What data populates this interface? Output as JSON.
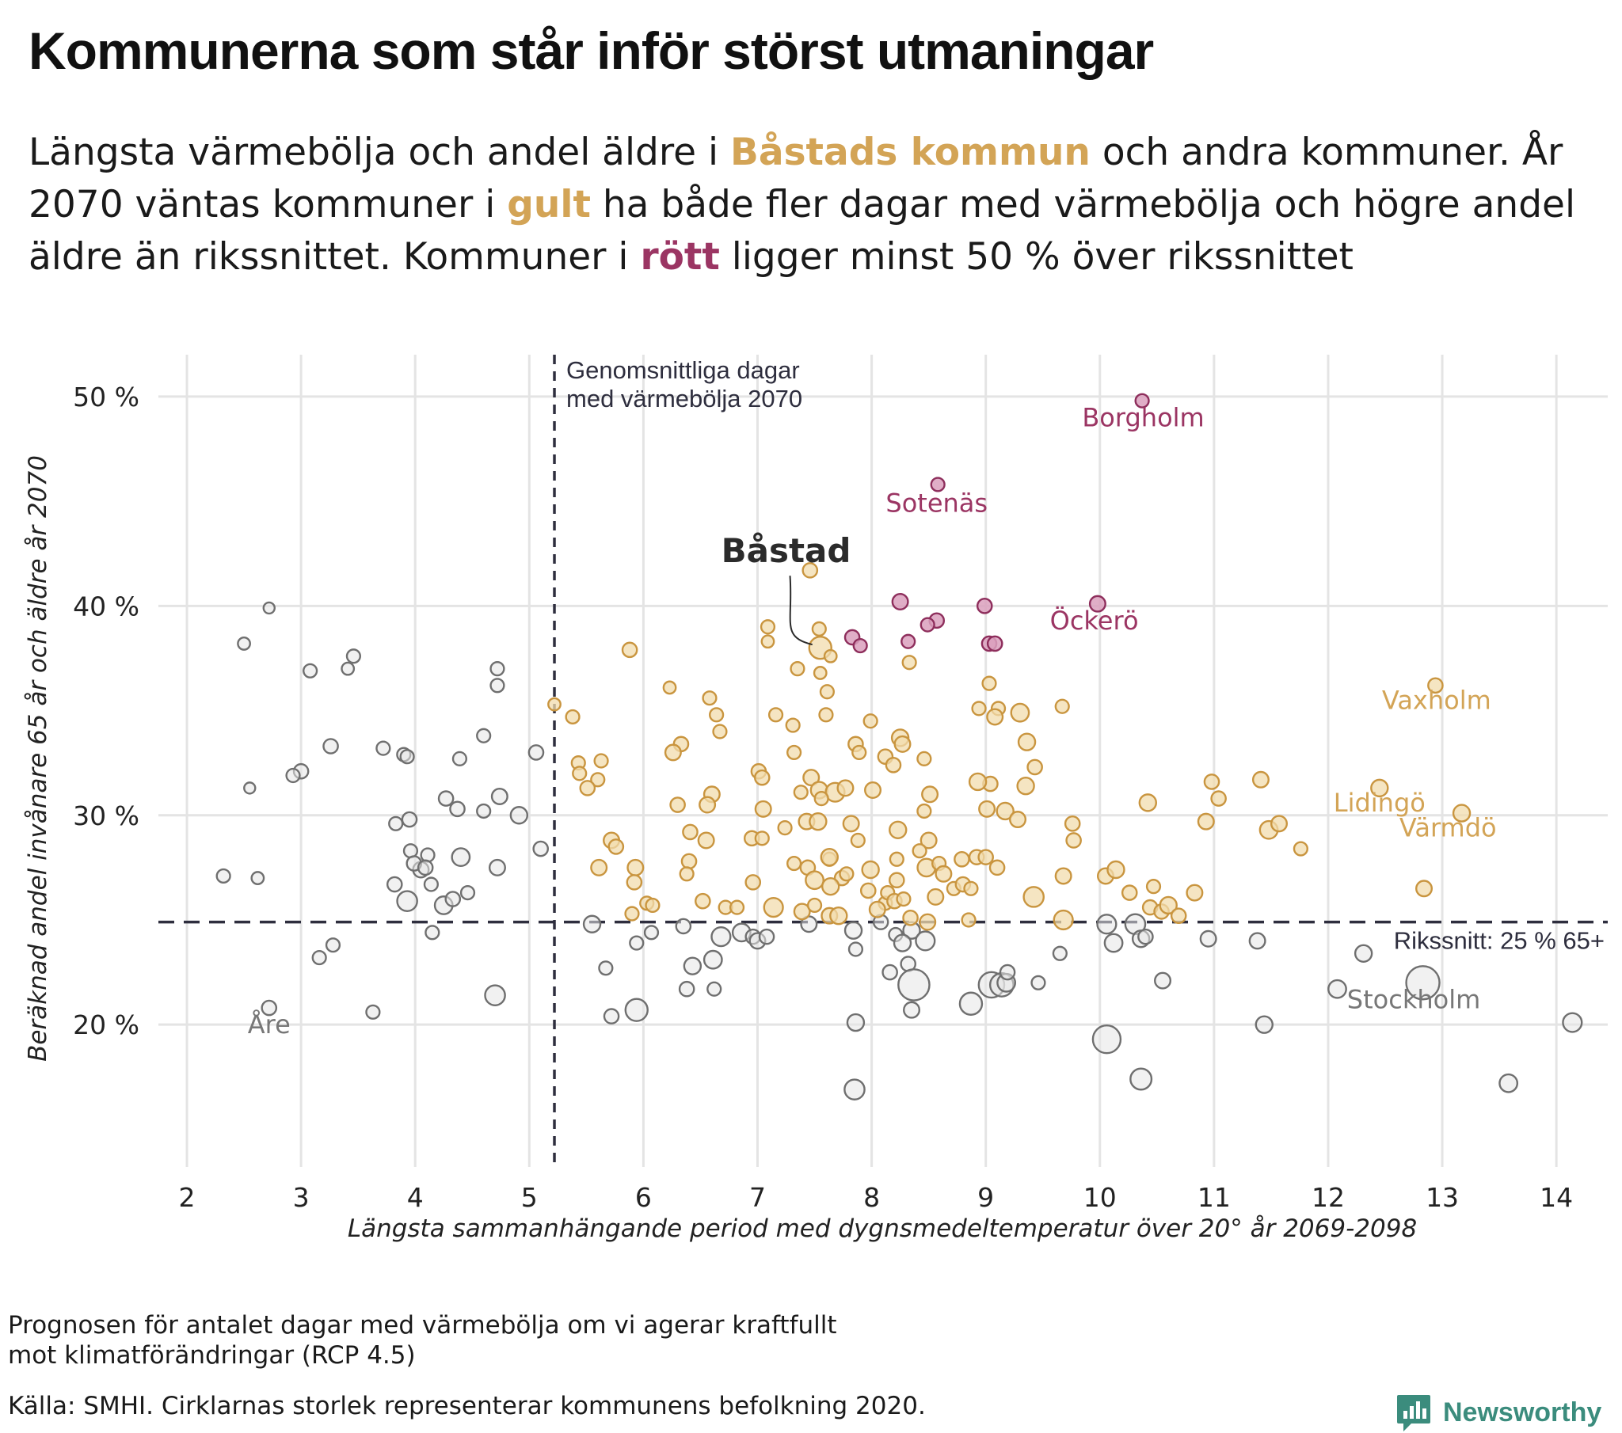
{
  "title": "Kommunerna som står inför störst utmaningar",
  "subtitle": {
    "p1": "Längsta värmebölja och andel äldre i ",
    "h1": "Båstads kommun",
    "p2": " och andra kommuner. År 2070 väntas kommuner i ",
    "h2": "gult",
    "p3": " ha både fler dagar med värmebölja och högre andel äldre än rikssnittet. Kommuner i ",
    "h3": "rött",
    "p4": " ligger minst 50 % över rikssnittet"
  },
  "footnotes": {
    "line1": "Prognosen för antalet dagar med värmebölja om vi agerar kraftfullt",
    "line2": "mot klimatförändringar (RCP 4.5)",
    "source": "Källa: SMHI. Cirklarnas storlek representerar kommunens befolkning 2020."
  },
  "logo": {
    "text": "Newsworthy",
    "icon": "bar-chart-logo-icon",
    "color": "#3b8c7d"
  },
  "chart_data": {
    "type": "scatter",
    "xlabel": "Längsta sammanhängande period med dygnsmedeltemperatur över 20° år 2069-2098",
    "ylabel": "Beräknad andel invånare 65 år och äldre år 2070",
    "xlim": [
      1.75,
      14.45
    ],
    "ylim": [
      13.2,
      52.0
    ],
    "x_ticks": [
      2,
      3,
      4,
      5,
      6,
      7,
      8,
      9,
      10,
      11,
      12,
      13,
      14
    ],
    "y_ticks": [
      {
        "value": 20,
        "label": "20 %"
      },
      {
        "value": 30,
        "label": "30 %"
      },
      {
        "value": 40,
        "label": "40 %"
      },
      {
        "value": 50,
        "label": "50 %"
      }
    ],
    "grid": true,
    "colors": {
      "gray": "#c8c8c8",
      "gold": "#d3a456",
      "red": "#9b3563",
      "gray_label": "#777777"
    },
    "reference_lines": {
      "vertical": {
        "x": 5.22,
        "label_line1": "Genomsnittliga dagar",
        "label_line2": "med värmebölja 2070"
      },
      "horizontal": {
        "y": 24.9,
        "label": "Rikssnitt: 25 % 65+"
      }
    },
    "labels": [
      {
        "text": "Borgholm",
        "x": 10.38,
        "y": 49.0,
        "group": "red"
      },
      {
        "text": "Sotenäs",
        "x": 8.57,
        "y": 44.9,
        "group": "red"
      },
      {
        "text": "Öckerö",
        "x": 9.95,
        "y": 39.3,
        "group": "red"
      },
      {
        "text": "Båstad",
        "x": 7.25,
        "y": 42.5,
        "group": "highlight"
      },
      {
        "text": "Vaxholm",
        "x": 12.95,
        "y": 35.5,
        "group": "gold"
      },
      {
        "text": "Lidingö",
        "x": 12.45,
        "y": 30.6,
        "group": "gold"
      },
      {
        "text": "Värmdö",
        "x": 13.05,
        "y": 29.4,
        "group": "gold"
      },
      {
        "text": "Stockholm",
        "x": 12.75,
        "y": 21.2,
        "group": "gray"
      },
      {
        "text": "Åre",
        "x": 2.72,
        "y": 20.0,
        "group": "gray"
      }
    ],
    "points_format": "[x, y, size]; size 1 = smallest circle",
    "red_points": [
      [
        10.37,
        49.8,
        1.2
      ],
      [
        8.58,
        45.8,
        1.2
      ],
      [
        9.98,
        40.1,
        1.4
      ],
      [
        8.25,
        40.2,
        1.4
      ],
      [
        8.99,
        40.0,
        1.3
      ],
      [
        8.57,
        39.3,
        1.3
      ],
      [
        8.49,
        39.1,
        1.2
      ],
      [
        7.83,
        38.5,
        1.3
      ],
      [
        7.9,
        38.1,
        1.2
      ],
      [
        8.32,
        38.3,
        1.2
      ],
      [
        9.03,
        38.2,
        1.3
      ],
      [
        9.08,
        38.2,
        1.3
      ]
    ],
    "gold_points": [
      [
        7.46,
        41.7,
        1.3
      ],
      [
        7.55,
        38.0,
        2.0
      ],
      [
        7.54,
        38.9,
        1.2
      ],
      [
        7.09,
        39.0,
        1.2
      ],
      [
        7.09,
        38.3,
        1.1
      ],
      [
        7.64,
        37.6,
        1.1
      ],
      [
        7.35,
        37.0,
        1.2
      ],
      [
        5.88,
        37.9,
        1.3
      ],
      [
        8.33,
        37.3,
        1.2
      ],
      [
        9.03,
        36.3,
        1.2
      ],
      [
        7.55,
        36.8,
        1.1
      ],
      [
        6.23,
        36.1,
        1.1
      ],
      [
        7.61,
        35.9,
        1.2
      ],
      [
        6.58,
        35.6,
        1.2
      ],
      [
        9.67,
        35.2,
        1.2
      ],
      [
        5.22,
        35.3,
        1.1
      ],
      [
        9.11,
        35.1,
        1.2
      ],
      [
        8.94,
        35.1,
        1.2
      ],
      [
        12.94,
        36.2,
        1.3
      ],
      [
        9.3,
        34.9,
        1.6
      ],
      [
        6.64,
        34.8,
        1.2
      ],
      [
        7.6,
        34.8,
        1.2
      ],
      [
        5.38,
        34.7,
        1.2
      ],
      [
        9.08,
        34.7,
        1.4
      ],
      [
        7.16,
        34.8,
        1.2
      ],
      [
        7.31,
        34.3,
        1.2
      ],
      [
        6.67,
        34.0,
        1.2
      ],
      [
        7.99,
        34.5,
        1.2
      ],
      [
        8.25,
        33.7,
        1.5
      ],
      [
        8.27,
        33.4,
        1.4
      ],
      [
        7.86,
        33.4,
        1.3
      ],
      [
        9.36,
        33.5,
        1.5
      ],
      [
        7.32,
        33.0,
        1.2
      ],
      [
        6.33,
        33.4,
        1.3
      ],
      [
        6.26,
        33.0,
        1.4
      ],
      [
        8.46,
        32.7,
        1.2
      ],
      [
        5.43,
        32.5,
        1.2
      ],
      [
        5.63,
        32.6,
        1.2
      ],
      [
        7.01,
        32.1,
        1.3
      ],
      [
        8.12,
        32.8,
        1.3
      ],
      [
        7.89,
        33.0,
        1.2
      ],
      [
        8.19,
        32.4,
        1.3
      ],
      [
        5.44,
        32.0,
        1.2
      ],
      [
        5.6,
        31.7,
        1.2
      ],
      [
        5.51,
        31.3,
        1.3
      ],
      [
        6.6,
        31.0,
        1.4
      ],
      [
        6.56,
        30.5,
        1.4
      ],
      [
        7.47,
        31.8,
        1.4
      ],
      [
        7.54,
        31.2,
        1.5
      ],
      [
        7.38,
        31.1,
        1.2
      ],
      [
        7.68,
        31.1,
        1.7
      ],
      [
        7.04,
        31.8,
        1.3
      ],
      [
        7.77,
        31.3,
        1.4
      ],
      [
        8.01,
        31.2,
        1.4
      ],
      [
        9.04,
        31.5,
        1.3
      ],
      [
        8.93,
        31.6,
        1.5
      ],
      [
        9.43,
        32.3,
        1.3
      ],
      [
        9.35,
        31.4,
        1.5
      ],
      [
        8.51,
        31.0,
        1.4
      ],
      [
        7.56,
        30.8,
        1.2
      ],
      [
        6.3,
        30.5,
        1.3
      ],
      [
        7.05,
        30.3,
        1.4
      ],
      [
        9.01,
        30.3,
        1.4
      ],
      [
        9.17,
        30.2,
        1.5
      ],
      [
        8.46,
        30.2,
        1.2
      ],
      [
        10.42,
        30.6,
        1.5
      ],
      [
        10.98,
        31.6,
        1.3
      ],
      [
        11.04,
        30.8,
        1.3
      ],
      [
        11.41,
        31.7,
        1.4
      ],
      [
        12.45,
        31.3,
        1.5
      ],
      [
        13.17,
        30.1,
        1.5
      ],
      [
        9.28,
        29.8,
        1.4
      ],
      [
        9.76,
        29.6,
        1.3
      ],
      [
        10.93,
        29.7,
        1.4
      ],
      [
        11.48,
        29.3,
        1.6
      ],
      [
        11.57,
        29.6,
        1.4
      ],
      [
        11.76,
        28.4,
        1.2
      ],
      [
        9.77,
        28.8,
        1.3
      ],
      [
        7.43,
        29.7,
        1.4
      ],
      [
        7.53,
        29.7,
        1.5
      ],
      [
        7.24,
        29.4,
        1.2
      ],
      [
        6.95,
        28.9,
        1.3
      ],
      [
        7.04,
        28.9,
        1.2
      ],
      [
        6.41,
        29.2,
        1.3
      ],
      [
        6.55,
        28.8,
        1.4
      ],
      [
        5.72,
        28.8,
        1.4
      ],
      [
        5.76,
        28.5,
        1.3
      ],
      [
        5.61,
        27.5,
        1.4
      ],
      [
        5.93,
        27.5,
        1.4
      ],
      [
        6.4,
        27.8,
        1.3
      ],
      [
        6.38,
        27.2,
        1.2
      ],
      [
        7.32,
        27.7,
        1.2
      ],
      [
        7.63,
        27.9,
        1.2
      ],
      [
        7.44,
        27.5,
        1.3
      ],
      [
        7.63,
        28.0,
        1.5
      ],
      [
        7.82,
        29.6,
        1.4
      ],
      [
        7.88,
        28.8,
        1.2
      ],
      [
        8.23,
        29.3,
        1.5
      ],
      [
        8.5,
        28.8,
        1.4
      ],
      [
        8.22,
        27.9,
        1.2
      ],
      [
        8.42,
        28.3,
        1.2
      ],
      [
        8.48,
        27.5,
        1.6
      ],
      [
        8.59,
        27.7,
        1.2
      ],
      [
        8.63,
        27.2,
        1.4
      ],
      [
        8.79,
        27.9,
        1.3
      ],
      [
        8.92,
        28.0,
        1.3
      ],
      [
        9.0,
        28.0,
        1.3
      ],
      [
        9.1,
        27.5,
        1.3
      ],
      [
        7.74,
        27.0,
        1.3
      ],
      [
        7.99,
        27.4,
        1.5
      ],
      [
        8.22,
        26.9,
        1.3
      ],
      [
        7.5,
        26.9,
        1.6
      ],
      [
        7.64,
        26.6,
        1.5
      ],
      [
        7.78,
        27.2,
        1.2
      ],
      [
        5.92,
        26.8,
        1.3
      ],
      [
        6.03,
        25.8,
        1.2
      ],
      [
        6.08,
        25.7,
        1.2
      ],
      [
        5.9,
        25.3,
        1.2
      ],
      [
        6.52,
        25.9,
        1.3
      ],
      [
        6.72,
        25.6,
        1.2
      ],
      [
        6.82,
        25.6,
        1.2
      ],
      [
        6.96,
        26.8,
        1.3
      ],
      [
        7.14,
        25.6,
        1.7
      ],
      [
        7.39,
        25.4,
        1.4
      ],
      [
        7.5,
        25.7,
        1.2
      ],
      [
        7.63,
        25.2,
        1.4
      ],
      [
        7.71,
        25.2,
        1.5
      ],
      [
        7.97,
        26.4,
        1.3
      ],
      [
        8.12,
        25.8,
        1.2
      ],
      [
        8.05,
        25.5,
        1.4
      ],
      [
        8.14,
        26.3,
        1.2
      ],
      [
        8.2,
        25.9,
        1.3
      ],
      [
        8.28,
        26.0,
        1.2
      ],
      [
        8.34,
        25.1,
        1.3
      ],
      [
        8.49,
        24.9,
        1.4
      ],
      [
        8.56,
        26.1,
        1.4
      ],
      [
        8.72,
        26.5,
        1.2
      ],
      [
        8.8,
        26.7,
        1.3
      ],
      [
        8.87,
        26.5,
        1.2
      ],
      [
        8.85,
        25.0,
        1.2
      ],
      [
        9.42,
        26.1,
        1.8
      ],
      [
        9.68,
        27.1,
        1.4
      ],
      [
        9.68,
        25.0,
        1.7
      ],
      [
        10.05,
        27.1,
        1.4
      ],
      [
        10.14,
        27.4,
        1.5
      ],
      [
        10.26,
        26.3,
        1.3
      ],
      [
        10.47,
        26.6,
        1.2
      ],
      [
        10.44,
        25.6,
        1.3
      ],
      [
        10.54,
        25.4,
        1.3
      ],
      [
        10.6,
        25.7,
        1.5
      ],
      [
        10.69,
        25.2,
        1.3
      ],
      [
        10.83,
        26.3,
        1.4
      ],
      [
        12.84,
        26.5,
        1.4
      ]
    ],
    "gray_points": [
      [
        2.72,
        39.9,
        1.0
      ],
      [
        2.5,
        38.2,
        1.1
      ],
      [
        3.46,
        37.6,
        1.2
      ],
      [
        3.08,
        36.9,
        1.2
      ],
      [
        3.41,
        37.0,
        1.1
      ],
      [
        4.72,
        37.0,
        1.2
      ],
      [
        4.72,
        36.2,
        1.2
      ],
      [
        4.6,
        33.8,
        1.2
      ],
      [
        3.26,
        33.3,
        1.3
      ],
      [
        3.72,
        33.2,
        1.2
      ],
      [
        3.9,
        32.9,
        1.2
      ],
      [
        3.93,
        32.8,
        1.2
      ],
      [
        4.39,
        32.7,
        1.2
      ],
      [
        5.06,
        33.0,
        1.3
      ],
      [
        2.55,
        31.3,
        1.0
      ],
      [
        3.0,
        32.1,
        1.3
      ],
      [
        2.93,
        31.9,
        1.2
      ],
      [
        4.27,
        30.8,
        1.3
      ],
      [
        4.74,
        30.9,
        1.4
      ],
      [
        4.37,
        30.3,
        1.3
      ],
      [
        4.6,
        30.2,
        1.2
      ],
      [
        4.91,
        30.0,
        1.5
      ],
      [
        3.95,
        29.8,
        1.3
      ],
      [
        3.83,
        29.6,
        1.2
      ],
      [
        3.96,
        28.3,
        1.2
      ],
      [
        4.11,
        28.1,
        1.2
      ],
      [
        4.05,
        27.4,
        1.4
      ],
      [
        3.99,
        27.7,
        1.3
      ],
      [
        4.09,
        27.5,
        1.3
      ],
      [
        4.4,
        28.0,
        1.6
      ],
      [
        4.72,
        27.5,
        1.4
      ],
      [
        5.1,
        28.4,
        1.3
      ],
      [
        2.32,
        27.1,
        1.2
      ],
      [
        2.62,
        27.0,
        1.1
      ],
      [
        3.82,
        26.7,
        1.3
      ],
      [
        3.93,
        25.9,
        1.8
      ],
      [
        4.14,
        26.7,
        1.2
      ],
      [
        4.25,
        25.7,
        1.6
      ],
      [
        4.33,
        26.0,
        1.3
      ],
      [
        4.46,
        26.3,
        1.2
      ],
      [
        4.15,
        24.4,
        1.2
      ],
      [
        5.55,
        24.8,
        1.5
      ],
      [
        6.07,
        24.4,
        1.2
      ],
      [
        6.35,
        24.7,
        1.3
      ],
      [
        6.68,
        24.2,
        1.7
      ],
      [
        6.86,
        24.4,
        1.6
      ],
      [
        6.96,
        24.2,
        1.3
      ],
      [
        7.0,
        24.0,
        1.4
      ],
      [
        7.08,
        24.2,
        1.3
      ],
      [
        7.45,
        24.8,
        1.4
      ],
      [
        5.94,
        23.9,
        1.2
      ],
      [
        7.84,
        24.5,
        1.5
      ],
      [
        8.08,
        24.9,
        1.3
      ],
      [
        8.21,
        24.3,
        1.2
      ],
      [
        8.35,
        24.5,
        1.5
      ],
      [
        8.47,
        24.0,
        1.7
      ],
      [
        8.27,
        23.9,
        1.5
      ],
      [
        7.86,
        23.6,
        1.2
      ],
      [
        3.16,
        23.2,
        1.2
      ],
      [
        3.28,
        23.8,
        1.2
      ],
      [
        5.67,
        22.7,
        1.2
      ],
      [
        6.43,
        22.8,
        1.5
      ],
      [
        6.61,
        23.1,
        1.6
      ],
      [
        8.32,
        22.9,
        1.3
      ],
      [
        8.16,
        22.5,
        1.3
      ],
      [
        8.37,
        21.9,
        2.8
      ],
      [
        8.35,
        20.7,
        1.4
      ],
      [
        8.87,
        21.0,
        2.0
      ],
      [
        9.05,
        21.9,
        2.3
      ],
      [
        9.14,
        21.9,
        2.1
      ],
      [
        9.18,
        22.0,
        1.6
      ],
      [
        9.19,
        22.5,
        1.3
      ],
      [
        9.46,
        22.0,
        1.2
      ],
      [
        9.65,
        23.4,
        1.2
      ],
      [
        10.06,
        24.8,
        1.7
      ],
      [
        10.12,
        23.9,
        1.6
      ],
      [
        10.31,
        24.8,
        1.8
      ],
      [
        10.36,
        24.1,
        1.5
      ],
      [
        10.4,
        24.2,
        1.3
      ],
      [
        10.55,
        22.1,
        1.4
      ],
      [
        10.95,
        24.1,
        1.4
      ],
      [
        11.38,
        24.0,
        1.4
      ],
      [
        12.31,
        23.4,
        1.5
      ],
      [
        12.08,
        21.7,
        1.6
      ],
      [
        12.83,
        22.0,
        3.0
      ],
      [
        4.7,
        21.4,
        1.8
      ],
      [
        6.38,
        21.7,
        1.3
      ],
      [
        6.62,
        21.7,
        1.2
      ],
      [
        5.72,
        20.4,
        1.3
      ],
      [
        5.94,
        20.7,
        2.0
      ],
      [
        2.72,
        20.8,
        1.3
      ],
      [
        3.63,
        20.6,
        1.2
      ],
      [
        7.86,
        20.1,
        1.5
      ],
      [
        10.06,
        19.3,
        2.5
      ],
      [
        10.36,
        17.4,
        1.9
      ],
      [
        11.44,
        20.0,
        1.5
      ],
      [
        14.14,
        20.1,
        1.7
      ],
      [
        13.58,
        17.2,
        1.6
      ],
      [
        7.85,
        16.9,
        1.8
      ]
    ]
  }
}
